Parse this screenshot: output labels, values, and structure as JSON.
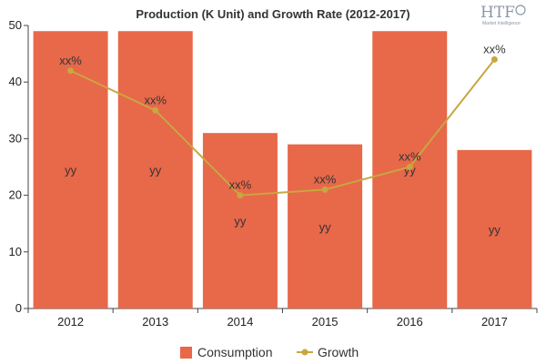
{
  "chart_data": {
    "type": "bar",
    "title": "Production (K Unit) and Growth Rate (2012-2017)",
    "categories": [
      "2012",
      "2013",
      "2014",
      "2015",
      "2016",
      "2017"
    ],
    "series": [
      {
        "name": "Consumption",
        "type": "bar",
        "color": "#e8684a",
        "values": [
          49,
          49,
          31,
          29,
          49,
          28
        ],
        "labels": [
          "yy",
          "yy",
          "yy",
          "yy",
          "yy",
          "yy"
        ]
      },
      {
        "name": "Growth",
        "type": "line",
        "color": "#c9a640",
        "values": [
          42,
          35,
          20,
          21,
          25,
          44
        ],
        "labels": [
          "xx%",
          "xx%",
          "xx%",
          "xx%",
          "xx%",
          "xx%"
        ]
      }
    ],
    "ylim": [
      0,
      50
    ],
    "yticks": [
      0,
      10,
      20,
      30,
      40,
      50
    ],
    "xlabel": "",
    "ylabel": "",
    "grid": false,
    "legend_position": "bottom"
  },
  "logo": {
    "text": "HTF",
    "subtitle": "Market Intelligence"
  }
}
